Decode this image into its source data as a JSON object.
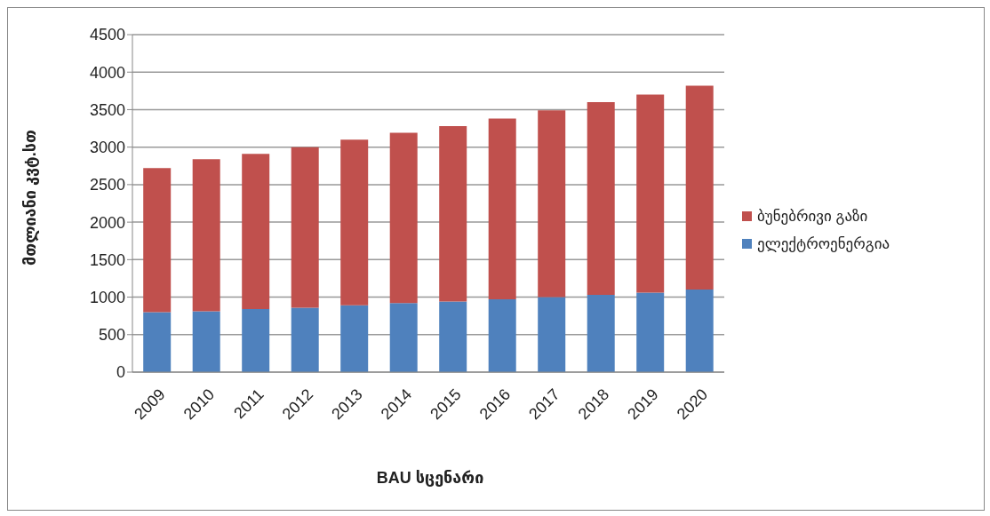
{
  "chart_data": {
    "type": "bar",
    "stacked": true,
    "xlabel": "BAU სცენარი",
    "ylabel": "მთლიანი კვტ.სთ",
    "categories": [
      "2009",
      "2010",
      "2011",
      "2012",
      "2013",
      "2014",
      "2015",
      "2016",
      "2017",
      "2018",
      "2019",
      "2020"
    ],
    "series": [
      {
        "name": "ელექტროენერგია",
        "color": "#4f81bd",
        "values": [
          800,
          810,
          840,
          860,
          890,
          920,
          940,
          970,
          1000,
          1030,
          1060,
          1100
        ]
      },
      {
        "name": "ბუნებრივი გაზი",
        "color": "#c0504d",
        "values": [
          1920,
          2030,
          2070,
          2140,
          2210,
          2270,
          2340,
          2410,
          2490,
          2570,
          2640,
          2720
        ]
      }
    ],
    "ylim": [
      0,
      4500
    ],
    "yticks": [
      0,
      500,
      1000,
      1500,
      2000,
      2500,
      3000,
      3500,
      4000,
      4500
    ],
    "grid": "y",
    "legend": "right"
  }
}
